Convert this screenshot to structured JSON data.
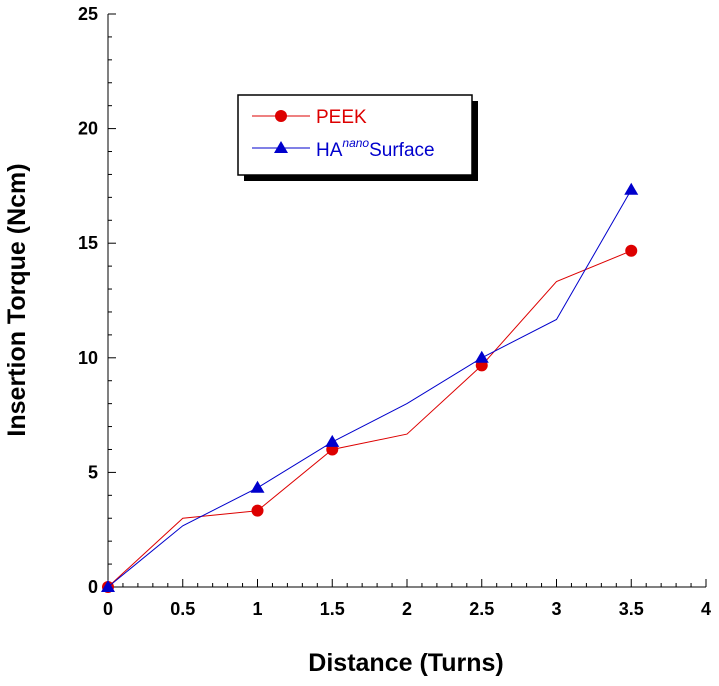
{
  "chart_data": {
    "type": "line",
    "title": "",
    "xlabel": "Distance (Turns)",
    "ylabel": "Insertion Torque (Ncm)",
    "xlim": [
      0,
      4
    ],
    "ylim": [
      0,
      25
    ],
    "xticks": [
      "0",
      "0.5",
      "1",
      "1.5",
      "2",
      "2.5",
      "3",
      "3.5",
      "4"
    ],
    "yticks": [
      "0",
      "5",
      "10",
      "15",
      "20",
      "25"
    ],
    "grid": false,
    "legend_position": "top-left",
    "series": [
      {
        "name": "PEEK",
        "color": "#dd0000",
        "marker": "circle",
        "x": [
          0,
          0.5,
          1,
          1.5,
          2,
          2.5,
          3,
          3.5
        ],
        "y": [
          0,
          3.0,
          3.33,
          6.0,
          6.67,
          9.67,
          13.33,
          14.67
        ],
        "marked": [
          true,
          false,
          true,
          true,
          false,
          true,
          false,
          true
        ]
      },
      {
        "name_base": "HA",
        "name_sup": "nano",
        "name_tail": "Surface",
        "color": "#0000cc",
        "marker": "triangle",
        "x": [
          0,
          0.5,
          1,
          1.5,
          2,
          2.5,
          3,
          3.5
        ],
        "y": [
          0,
          2.67,
          4.33,
          6.33,
          8.0,
          10.0,
          11.67,
          17.33
        ],
        "marked": [
          true,
          false,
          true,
          true,
          false,
          true,
          false,
          true
        ]
      }
    ]
  }
}
